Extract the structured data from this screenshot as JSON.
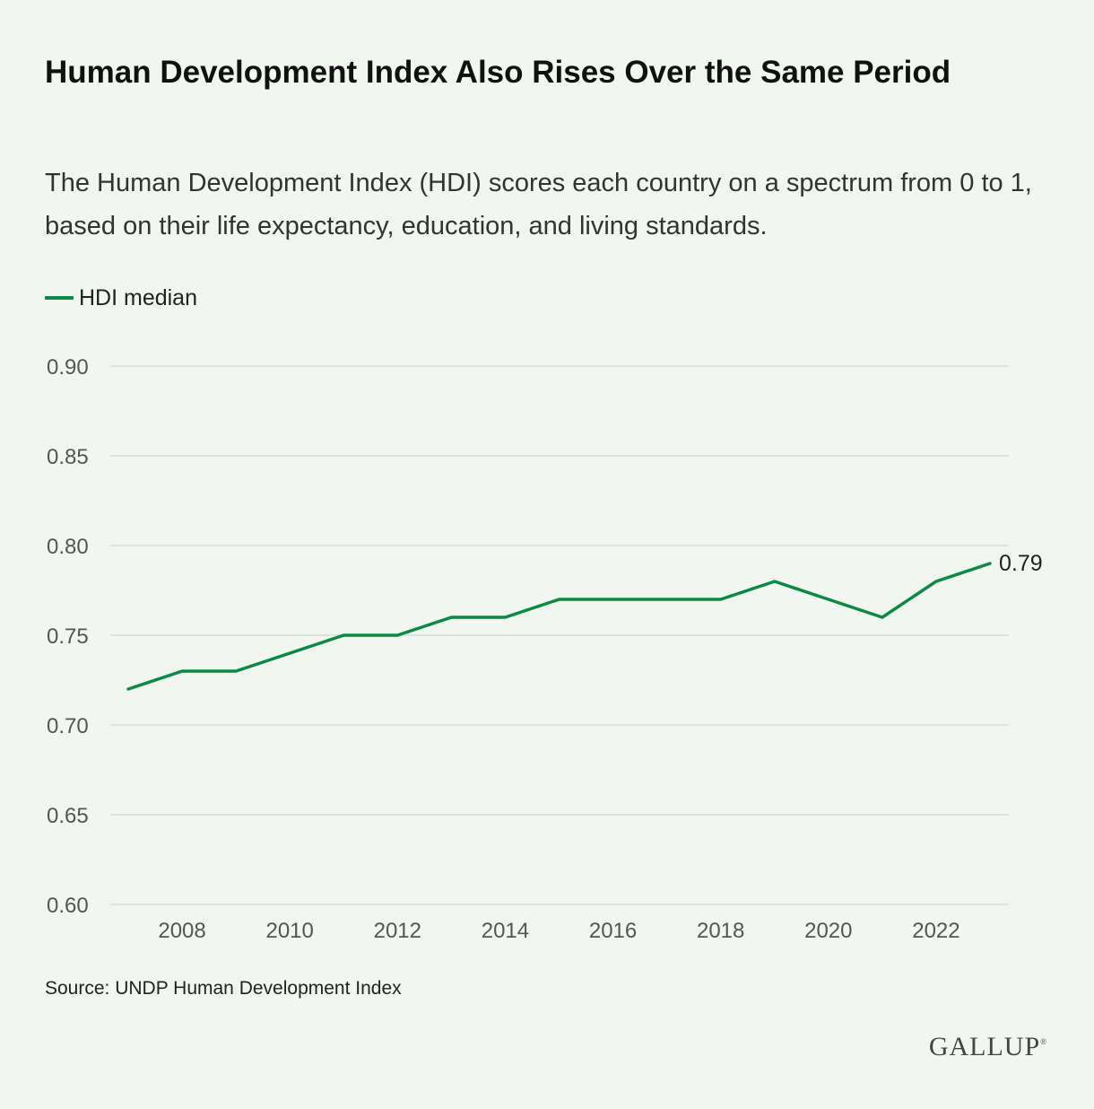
{
  "title": "Human Development Index Also Rises Over the Same Period",
  "subtitle": "The Human Development Index (HDI) scores each country on a spectrum from 0 to 1, based on their life expectancy, education, and living standards.",
  "source": "Source: UNDP Human Development Index",
  "logo": "GALLUP",
  "colors": {
    "line": "#0a8a45",
    "grid": "#d9dcd7",
    "background": "#f1f7f0"
  },
  "chart_data": {
    "type": "line",
    "title": "Human Development Index Also Rises Over the Same Period",
    "xlabel": "",
    "ylabel": "",
    "x": [
      2007,
      2008,
      2009,
      2010,
      2011,
      2012,
      2013,
      2014,
      2015,
      2016,
      2017,
      2018,
      2019,
      2020,
      2021,
      2022,
      2023
    ],
    "series": [
      {
        "name": "HDI median",
        "values": [
          0.72,
          0.73,
          0.73,
          0.74,
          0.75,
          0.75,
          0.76,
          0.76,
          0.77,
          0.77,
          0.77,
          0.77,
          0.78,
          0.77,
          0.76,
          0.78,
          0.79
        ]
      }
    ],
    "end_label": "0.79",
    "xticks": [
      "2008",
      "2010",
      "2012",
      "2014",
      "2016",
      "2018",
      "2020",
      "2022"
    ],
    "yticks": [
      "0.60",
      "0.65",
      "0.70",
      "0.75",
      "0.80",
      "0.85",
      "0.90"
    ],
    "ylim": [
      0.6,
      0.9
    ],
    "grid": "horizontal",
    "legend_position": "top-left"
  }
}
